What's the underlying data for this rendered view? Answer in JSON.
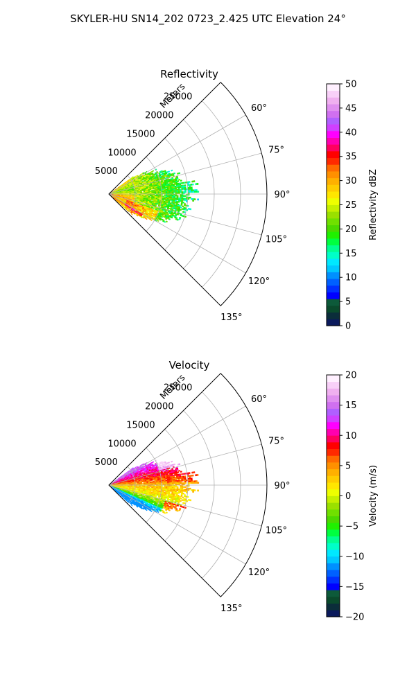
{
  "figure_title": "SKYLER-HU  SN14_202  0723_2.425 UTC Elevation 24°",
  "chart_data": [
    {
      "type": "heatmap",
      "projection": "polar-sector",
      "title": "Reflectivity",
      "range_label": "Meters",
      "range_ticks": [
        5000,
        10000,
        15000,
        20000,
        25000
      ],
      "range_tick_labels": [
        "5000",
        "10000",
        "15000",
        "20000",
        "25000"
      ],
      "range_max": 30000,
      "azimuth_range_deg": [
        45,
        135
      ],
      "azimuth_ticks": [
        60,
        75,
        90,
        105,
        120,
        135
      ],
      "azimuth_tick_labels": [
        "60°",
        "75°",
        "90°",
        "105°",
        "120°",
        "135°"
      ],
      "data_extent": {
        "azimuth_deg": [
          54,
          132
        ],
        "range_m": [
          0,
          18000
        ]
      },
      "grid": true,
      "colorbar": {
        "label": "Reflectivity dBZ",
        "min": 0,
        "max": 50,
        "ticks": [
          0,
          5,
          10,
          15,
          20,
          25,
          30,
          35,
          40,
          45,
          50
        ],
        "tick_labels": [
          "0",
          "5",
          "10",
          "15",
          "20",
          "25",
          "30",
          "35",
          "40",
          "45",
          "50"
        ],
        "colors": [
          "#0b1a5c",
          "#0b2d3a",
          "#0a4a2c",
          "#0d5a3a",
          "#0000ff",
          "#0030ff",
          "#0060ff",
          "#0090ff",
          "#00c8ff",
          "#00e8ff",
          "#00ffc8",
          "#00ff90",
          "#00ff40",
          "#20f000",
          "#4cd900",
          "#70e000",
          "#9ae000",
          "#c6f000",
          "#eeff00",
          "#ffe600",
          "#ffcc00",
          "#ffb000",
          "#ff9000",
          "#ff6a00",
          "#ff2a00",
          "#ff0000",
          "#ff0060",
          "#ff00b0",
          "#ff00ff",
          "#d040ff",
          "#b060ff",
          "#d070f0",
          "#e090f0",
          "#f0b0f0",
          "#f8d0f8",
          "#fff0ff"
        ]
      }
    },
    {
      "type": "heatmap",
      "projection": "polar-sector",
      "title": "Velocity",
      "range_label": "Meters",
      "range_ticks": [
        5000,
        10000,
        15000,
        20000,
        25000
      ],
      "range_tick_labels": [
        "5000",
        "10000",
        "15000",
        "20000",
        "25000"
      ],
      "range_max": 30000,
      "azimuth_range_deg": [
        45,
        135
      ],
      "azimuth_ticks": [
        60,
        75,
        90,
        105,
        120,
        135
      ],
      "azimuth_tick_labels": [
        "60°",
        "75°",
        "90°",
        "105°",
        "120°",
        "135°"
      ],
      "data_extent": {
        "azimuth_deg": [
          54,
          132
        ],
        "range_m": [
          0,
          18000
        ]
      },
      "grid": true,
      "colorbar": {
        "label": "Velocity (m/s)",
        "min": -20,
        "max": 20,
        "ticks": [
          -20,
          -15,
          -10,
          -5,
          0,
          5,
          10,
          15,
          20
        ],
        "tick_labels": [
          "−20",
          "−15",
          "−10",
          "−5",
          "0",
          "5",
          "10",
          "15",
          "20"
        ],
        "colors": [
          "#0b1a5c",
          "#0b2d3a",
          "#0a4a2c",
          "#0d5a3a",
          "#0000ff",
          "#0030ff",
          "#0060ff",
          "#0090ff",
          "#00c8ff",
          "#00e8ff",
          "#00ffc8",
          "#00ff90",
          "#00ff40",
          "#20f000",
          "#4cd900",
          "#70e000",
          "#9ae000",
          "#c6f000",
          "#eeff00",
          "#ffe600",
          "#ffcc00",
          "#ffb000",
          "#ff9000",
          "#ff6a00",
          "#ff2a00",
          "#ff0000",
          "#ff0060",
          "#ff00b0",
          "#ff00ff",
          "#d040ff",
          "#b060ff",
          "#d070f0",
          "#e090f0",
          "#f0b0f0",
          "#f8d0f8",
          "#fff0ff"
        ]
      }
    }
  ]
}
